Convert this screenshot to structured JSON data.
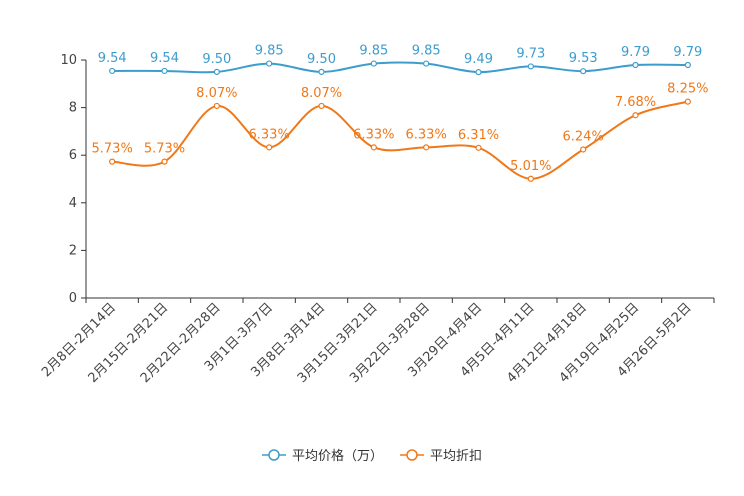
{
  "chart_data": {
    "type": "line",
    "categories": [
      "2月8日-2月14日",
      "2月15日-2月21日",
      "2月22日-2月28日",
      "3月1日-3月7日",
      "3月8日-3月14日",
      "3月15日-3月21日",
      "3月22日-3月28日",
      "3月29日-4月4日",
      "4月5日-4月11日",
      "4月12日-4月18日",
      "4月19日-4月25日",
      "4月26日-5月2日"
    ],
    "series": [
      {
        "name": "平均价格（万）",
        "color": "#3c9dcc",
        "values": [
          9.54,
          9.54,
          9.5,
          9.85,
          9.5,
          9.85,
          9.85,
          9.49,
          9.73,
          9.53,
          9.79,
          9.79
        ],
        "labels": [
          "9.54",
          "9.54",
          "9.50",
          "9.85",
          "9.50",
          "9.85",
          "9.85",
          "9.49",
          "9.73",
          "9.53",
          "9.79",
          "9.79"
        ]
      },
      {
        "name": "平均折扣",
        "color": "#f07818",
        "values": [
          5.73,
          5.73,
          8.07,
          6.33,
          8.07,
          6.33,
          6.33,
          6.31,
          5.01,
          6.24,
          7.68,
          8.25
        ],
        "labels": [
          "5.73%",
          "5.73%",
          "8.07%",
          "6.33%",
          "8.07%",
          "6.33%",
          "6.33%",
          "6.31%",
          "5.01%",
          "6.24%",
          "7.68%",
          "8.25%"
        ]
      }
    ],
    "yticks": [
      "0",
      "2",
      "4",
      "6",
      "8",
      "10"
    ],
    "ylim": [
      0,
      10
    ],
    "legend_position": "bottom-center",
    "grid": false
  }
}
